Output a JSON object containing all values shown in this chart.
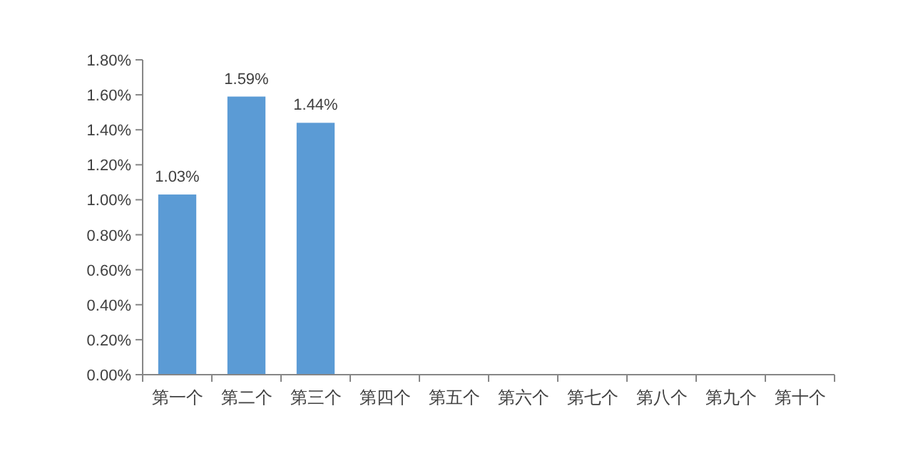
{
  "chart_data": {
    "type": "bar",
    "categories": [
      "第一个",
      "第二个",
      "第三个",
      "第四个",
      "第五个",
      "第六个",
      "第七个",
      "第八个",
      "第九个",
      "第十个"
    ],
    "values": [
      1.03,
      1.59,
      1.44,
      null,
      null,
      null,
      null,
      null,
      null,
      null
    ],
    "value_labels": [
      "1.03%",
      "1.59%",
      "1.44%",
      null,
      null,
      null,
      null,
      null,
      null,
      null
    ],
    "color": "#5b9bd5",
    "ylim": [
      0,
      1.8
    ],
    "yticks": [
      {
        "value": 0,
        "label": "0.00%"
      },
      {
        "value": 0.2,
        "label": "0.20%"
      },
      {
        "value": 0.4,
        "label": "0.40%"
      },
      {
        "value": 0.6,
        "label": "0.60%"
      },
      {
        "value": 0.8,
        "label": "0.80%"
      },
      {
        "value": 1.0,
        "label": "1.00%"
      },
      {
        "value": 1.2,
        "label": "1.20%"
      },
      {
        "value": 1.4,
        "label": "1.40%"
      },
      {
        "value": 1.6,
        "label": "1.60%"
      },
      {
        "value": 1.8,
        "label": "1.80%"
      }
    ],
    "grid": false
  }
}
